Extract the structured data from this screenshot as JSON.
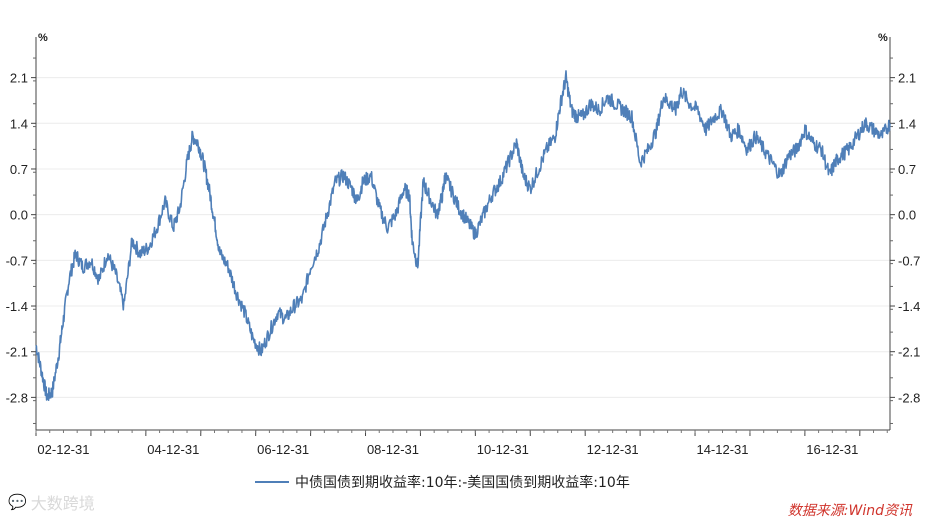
{
  "chart_data": {
    "type": "line",
    "title": "",
    "unit_left": "%",
    "unit_right": "%",
    "y_ticks": [
      "2.1",
      "1.4",
      "0.7",
      "0.0",
      "-0.7",
      "-1.4",
      "-2.1",
      "-2.8"
    ],
    "y_tick_values": [
      2.1,
      1.4,
      0.7,
      0.0,
      -0.7,
      -1.4,
      -2.1,
      -2.8
    ],
    "ylim": [
      -3.3,
      2.6
    ],
    "x_ticks": [
      "02-12-31",
      "04-12-31",
      "06-12-31",
      "08-12-31",
      "10-12-31",
      "12-12-31",
      "14-12-31",
      "16-12-31"
    ],
    "x_tick_values": [
      2003.0,
      2005.0,
      2007.0,
      2009.0,
      2011.0,
      2013.0,
      2015.0,
      2017.0
    ],
    "xlim": [
      2002.0,
      2017.55
    ],
    "grid": "horizontal",
    "legend_position": "bottom",
    "series": [
      {
        "name": "中债国债到期收益率:10年:-美国国债到期收益率:10年",
        "color": "#4f7fb8",
        "x": [
          2002.0,
          2002.1,
          2002.2,
          2002.3,
          2002.42,
          2002.5,
          2002.6,
          2002.72,
          2002.85,
          2003.0,
          2003.15,
          2003.3,
          2003.45,
          2003.6,
          2003.75,
          2003.9,
          2004.05,
          2004.2,
          2004.35,
          2004.5,
          2004.62,
          2004.75,
          2004.85,
          2004.95,
          2005.05,
          2005.15,
          2005.25,
          2005.35,
          2005.5,
          2005.65,
          2005.8,
          2005.95,
          2006.1,
          2006.25,
          2006.4,
          2006.55,
          2006.7,
          2006.85,
          2007.0,
          2007.15,
          2007.3,
          2007.45,
          2007.6,
          2007.75,
          2007.85,
          2007.95,
          2008.1,
          2008.25,
          2008.4,
          2008.55,
          2008.7,
          2008.8,
          2008.85,
          2008.95,
          2009.05,
          2009.15,
          2009.3,
          2009.4,
          2009.45,
          2009.55,
          2009.7,
          2009.85,
          2010.0,
          2010.15,
          2010.3,
          2010.45,
          2010.6,
          2010.75,
          2010.87,
          2011.0,
          2011.15,
          2011.3,
          2011.45,
          2011.55,
          2011.65,
          2011.75,
          2011.85,
          2011.95,
          2012.1,
          2012.25,
          2012.4,
          2012.55,
          2012.7,
          2012.85,
          2013.0,
          2013.15,
          2013.3,
          2013.42,
          2013.55,
          2013.65,
          2013.75,
          2013.9,
          2014.05,
          2014.2,
          2014.35,
          2014.5,
          2014.65,
          2014.8,
          2014.95,
          2015.1,
          2015.25,
          2015.4,
          2015.55,
          2015.7,
          2015.85,
          2016.0,
          2016.15,
          2016.3,
          2016.45,
          2016.55,
          2016.65,
          2016.8,
          2016.95,
          2017.1,
          2017.25,
          2017.4,
          2017.55
        ],
        "values": [
          -2.0,
          -2.4,
          -2.8,
          -2.7,
          -2.1,
          -1.6,
          -1.0,
          -0.6,
          -0.8,
          -0.7,
          -1.0,
          -0.6,
          -0.9,
          -1.4,
          -0.4,
          -0.6,
          -0.5,
          -0.2,
          0.2,
          -0.2,
          0.1,
          0.8,
          1.2,
          1.1,
          0.8,
          0.4,
          -0.1,
          -0.6,
          -0.8,
          -1.2,
          -1.5,
          -1.9,
          -2.1,
          -1.8,
          -1.5,
          -1.6,
          -1.4,
          -1.3,
          -0.8,
          -0.5,
          0.0,
          0.5,
          0.6,
          0.4,
          0.2,
          0.5,
          0.6,
          0.1,
          -0.2,
          0.0,
          0.4,
          0.3,
          -0.4,
          -0.8,
          0.5,
          0.3,
          0.0,
          0.3,
          0.6,
          0.4,
          0.1,
          -0.1,
          -0.3,
          0.0,
          0.3,
          0.5,
          0.8,
          1.1,
          0.6,
          0.4,
          0.7,
          1.0,
          1.2,
          1.7,
          2.1,
          1.6,
          1.5,
          1.5,
          1.7,
          1.6,
          1.8,
          1.7,
          1.6,
          1.5,
          0.8,
          1.0,
          1.3,
          1.8,
          1.7,
          1.6,
          1.9,
          1.7,
          1.6,
          1.3,
          1.5,
          1.6,
          1.2,
          1.3,
          1.0,
          1.2,
          1.0,
          0.8,
          0.6,
          0.9,
          1.0,
          1.3,
          1.1,
          1.0,
          0.6,
          0.8,
          0.9,
          1.0,
          1.2,
          1.4,
          1.3,
          1.2,
          1.4
        ]
      }
    ]
  },
  "watermark": {
    "icon": "wechat-icon",
    "text": "大数跨境"
  },
  "source": "数据来源:Wind资讯"
}
